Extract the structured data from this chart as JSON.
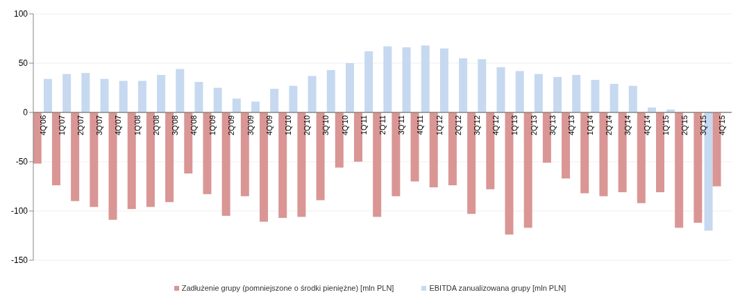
{
  "chart_data": {
    "type": "bar",
    "categories": [
      "4Q'06",
      "1Q'07",
      "2Q'07",
      "3Q'07",
      "4Q'07",
      "1Q'08",
      "2Q'08",
      "3Q'08",
      "4Q'08",
      "1Q'09",
      "2Q'09",
      "3Q'09",
      "4Q'09",
      "1Q'10",
      "2Q'10",
      "3Q'10",
      "4Q'10",
      "1Q'11",
      "2Q'11",
      "3Q'11",
      "4Q'11",
      "1Q'12",
      "2Q'12",
      "3Q'12",
      "4Q'12",
      "1Q'13",
      "2Q'13",
      "3Q'13",
      "4Q'13",
      "1Q'14",
      "2Q'14",
      "3Q'14",
      "4Q'14",
      "1Q'15",
      "2Q'15",
      "3Q'15",
      "4Q'15"
    ],
    "series": [
      {
        "name": "Zadłużenie grupy (pomniejszone o środki pieniężne) [mln PLN]",
        "color": "#d99694",
        "values": [
          -52,
          -74,
          -90,
          -96,
          -109,
          -98,
          -96,
          -91,
          -62,
          -83,
          -105,
          -85,
          -111,
          -107,
          -106,
          -89,
          -56,
          -50,
          -106,
          -85,
          -70,
          -76,
          -74,
          -103,
          -78,
          -124,
          -117,
          -51,
          -67,
          -82,
          -85,
          -81,
          -92,
          -81,
          -117,
          -112,
          -75
        ]
      },
      {
        "name": "EBITDA zanualizowana grupy [mln PLN]",
        "color": "#c6d9f0",
        "values": [
          34,
          39,
          40,
          34,
          32,
          32,
          38,
          44,
          31,
          25,
          14,
          11,
          24,
          27,
          37,
          43,
          50,
          62,
          67,
          66,
          68,
          65,
          55,
          54,
          46,
          42,
          39,
          36,
          38,
          33,
          29,
          27,
          5,
          3,
          null,
          -120,
          null
        ]
      }
    ],
    "ylim": [
      -150,
      100
    ],
    "yticks": [
      -150,
      -100,
      -50,
      0,
      50,
      100
    ],
    "grid": "y",
    "legend": "bottom"
  }
}
